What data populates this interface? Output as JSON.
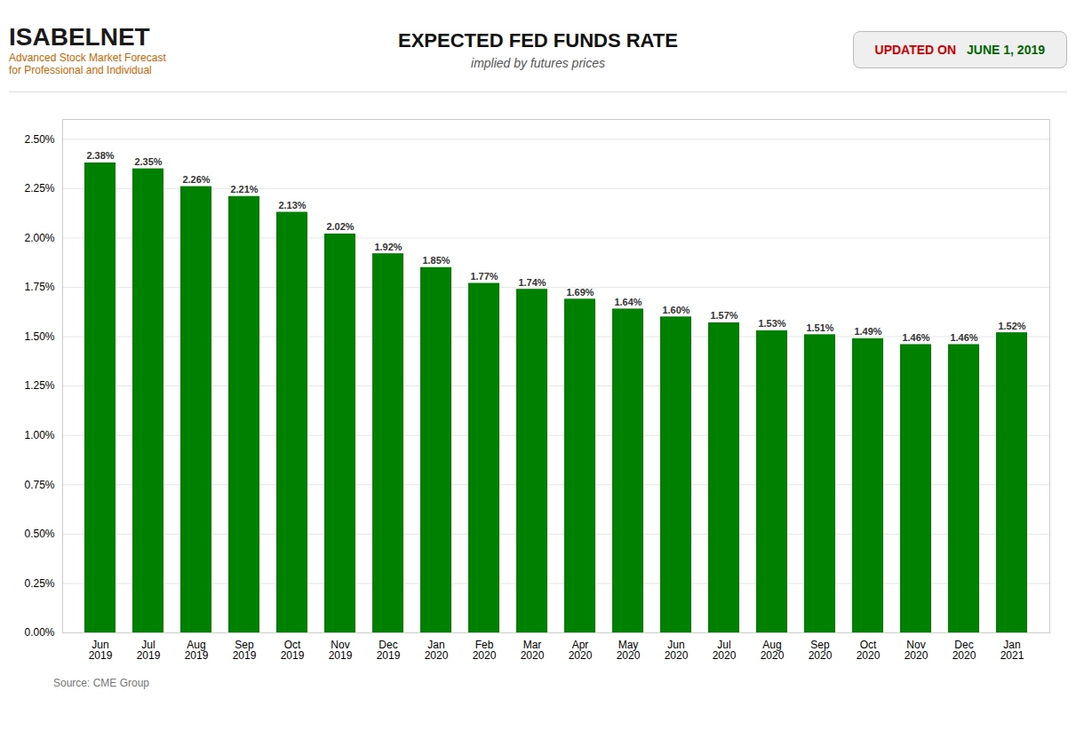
{
  "chart_data": {
    "type": "bar",
    "title": "EXPECTED FED FUNDS RATE",
    "subtitle": "implied by futures prices",
    "annotations": [
      "ISABELNET",
      "Advanced Stock Market Forecast",
      "for Professional and Individual",
      "UPDATED ON",
      "JUNE 1, 2019"
    ],
    "caption": "Source: CME Group",
    "categories": [
      "Jun\n2019",
      "Jul\n2019",
      "Aug\n2019",
      "Sep\n2019",
      "Oct\n2019",
      "Nov\n2019",
      "Dec\n2019",
      "Jan\n2020",
      "Feb\n2020",
      "Mar\n2020",
      "Apr\n2020",
      "May\n2020",
      "Jun\n2020",
      "Jul\n2020",
      "Aug\n2020",
      "Sep\n2020",
      "Oct\n2020",
      "Nov\n2020",
      "Dec\n2020",
      "Jan\n2021"
    ],
    "values": [
      2.38,
      2.35,
      2.26,
      2.21,
      2.13,
      2.02,
      1.92,
      1.85,
      1.77,
      1.74,
      1.69,
      1.64,
      1.6,
      1.57,
      1.53,
      1.51,
      1.49,
      1.46,
      1.46,
      1.52
    ],
    "value_labels": [
      "2.38%",
      "2.35%",
      "2.26%",
      "2.21%",
      "2.13%",
      "2.02%",
      "1.92%",
      "1.85%",
      "1.77%",
      "1.74%",
      "1.69%",
      "1.64%",
      "1.60%",
      "1.57%",
      "1.53%",
      "1.51%",
      "1.49%",
      "1.46%",
      "1.46%",
      "1.52%"
    ],
    "color": "#008000",
    "ylim": [
      0,
      2.6
    ],
    "yticks": [
      {
        "value": 0.0,
        "label": "0.00%"
      },
      {
        "value": 0.25,
        "label": "0.25%"
      },
      {
        "value": 0.5,
        "label": "0.50%"
      },
      {
        "value": 0.75,
        "label": "0.75%"
      },
      {
        "value": 1.0,
        "label": "1.00%"
      },
      {
        "value": 1.25,
        "label": "1.25%"
      },
      {
        "value": 1.5,
        "label": "1.50%"
      },
      {
        "value": 1.75,
        "label": "1.75%"
      },
      {
        "value": 2.0,
        "label": "2.00%"
      },
      {
        "value": 2.25,
        "label": "2.25%"
      },
      {
        "value": 2.5,
        "label": "2.50%"
      }
    ],
    "grid": true,
    "data_labels": true
  }
}
